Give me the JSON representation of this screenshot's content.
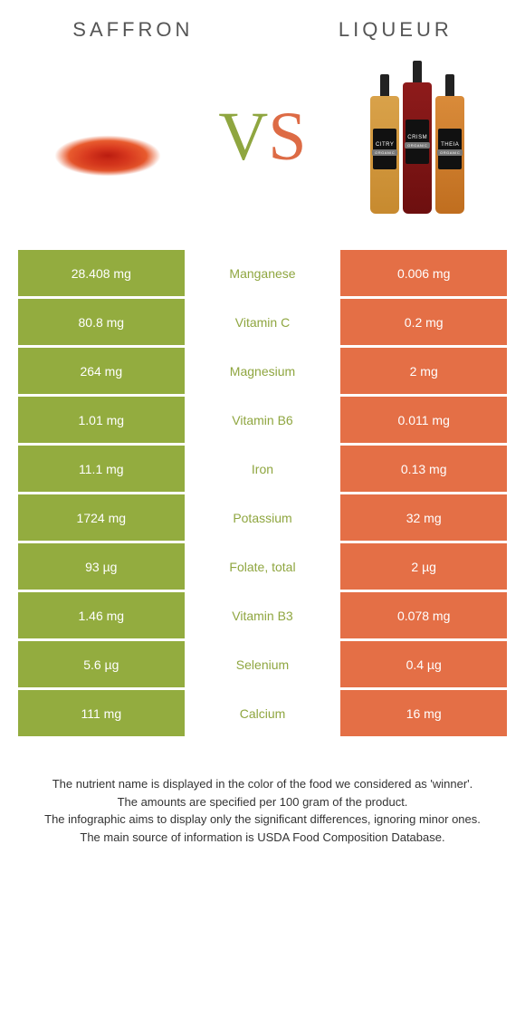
{
  "title_left": "Saffron",
  "title_right": "Liqueur",
  "vs_left_letter": "V",
  "vs_right_letter": "S",
  "colors": {
    "left_bg": "#93ac3f",
    "right_bg": "#e46f46",
    "mid_text": "#8fa640",
    "cell_text": "#ffffff",
    "row_gap": "#ffffff"
  },
  "bottle_labels": [
    "CITRY",
    "CRISM",
    "THEIA"
  ],
  "bottle_sub": "ORGANIC",
  "rows": [
    {
      "left": "28.408 mg",
      "mid": "Manganese",
      "right": "0.006 mg"
    },
    {
      "left": "80.8 mg",
      "mid": "Vitamin C",
      "right": "0.2 mg"
    },
    {
      "left": "264 mg",
      "mid": "Magnesium",
      "right": "2 mg"
    },
    {
      "left": "1.01 mg",
      "mid": "Vitamin B6",
      "right": "0.011 mg"
    },
    {
      "left": "11.1 mg",
      "mid": "Iron",
      "right": "0.13 mg"
    },
    {
      "left": "1724 mg",
      "mid": "Potassium",
      "right": "32 mg"
    },
    {
      "left": "93 µg",
      "mid": "Folate, total",
      "right": "2 µg"
    },
    {
      "left": "1.46 mg",
      "mid": "Vitamin B3",
      "right": "0.078 mg"
    },
    {
      "left": "5.6 µg",
      "mid": "Selenium",
      "right": "0.4 µg"
    },
    {
      "left": "111 mg",
      "mid": "Calcium",
      "right": "16 mg"
    }
  ],
  "footer_lines": [
    "The nutrient name is displayed in the color of the food we considered as 'winner'.",
    "The amounts are specified per 100 gram of the product.",
    "The infographic aims to display only the significant differences, ignoring minor ones.",
    "The main source of information is USDA Food Composition Database."
  ]
}
